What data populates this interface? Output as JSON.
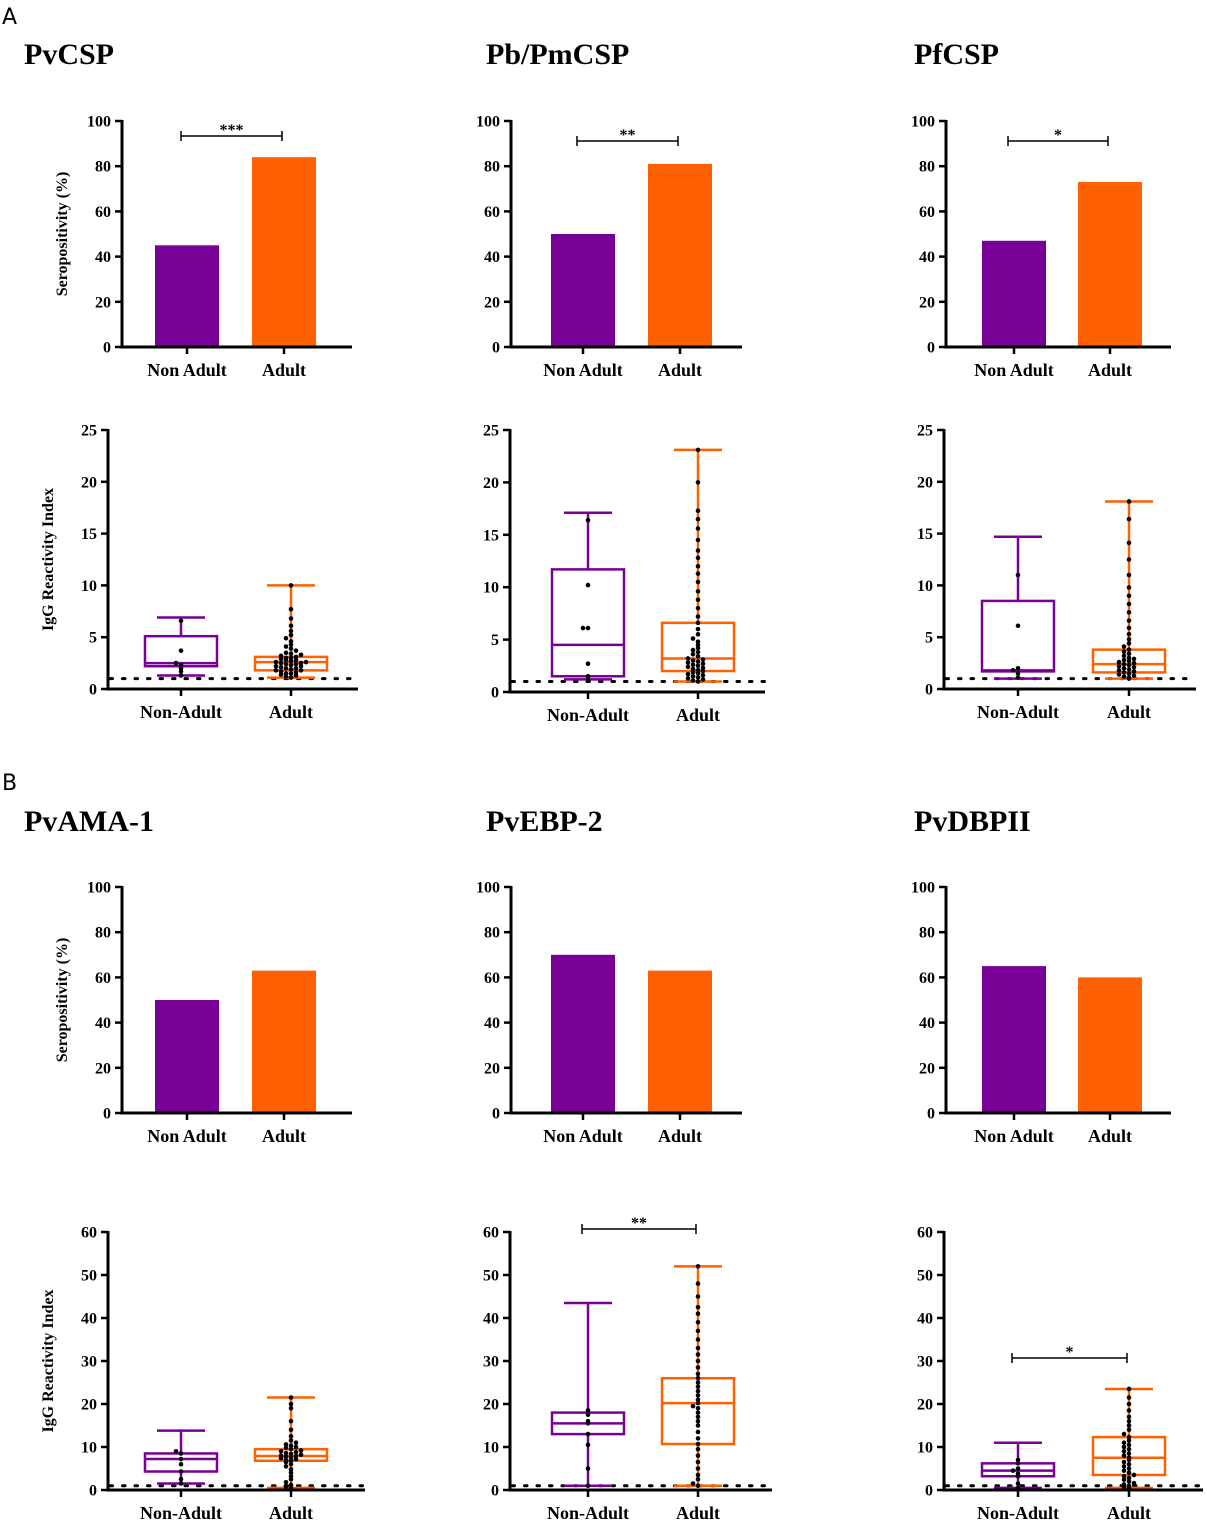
{
  "figure": {
    "sections": [
      {
        "letter": "A"
      },
      {
        "letter": "B"
      }
    ]
  },
  "colors": {
    "non_adult": "#780094",
    "adult": "#ff6100",
    "axis": "#000000",
    "dots": "#000000"
  },
  "chart_data": [
    {
      "id": "pvcsp-sero",
      "type": "bar",
      "title": "PvCSP",
      "ylabel": "Seropositivity (%)",
      "categories": [
        "Non Adult",
        "Adult"
      ],
      "values": [
        45,
        84
      ],
      "ylim": [
        0,
        100
      ],
      "yticks": [
        0,
        20,
        40,
        60,
        80,
        100
      ],
      "significance": "***"
    },
    {
      "id": "pbpmcsp-sero",
      "type": "bar",
      "title": "Pb/PmCSP",
      "ylabel": "",
      "categories": [
        "Non Adult",
        "Adult"
      ],
      "values": [
        50,
        81
      ],
      "ylim": [
        0,
        100
      ],
      "yticks": [
        0,
        20,
        40,
        60,
        80,
        100
      ],
      "significance": "**"
    },
    {
      "id": "pfcsp-sero",
      "type": "bar",
      "title": "PfCSP",
      "ylabel": "",
      "categories": [
        "Non Adult",
        "Adult"
      ],
      "values": [
        47,
        73
      ],
      "ylim": [
        0,
        100
      ],
      "yticks": [
        0,
        20,
        40,
        60,
        80,
        100
      ],
      "significance": "*"
    },
    {
      "id": "pvcsp-igg",
      "type": "boxplot",
      "ylabel": "IgG Reactivity Index",
      "categories": [
        "Non-Adult",
        "Adult"
      ],
      "ylim": [
        0,
        25
      ],
      "yticks": [
        0,
        5,
        10,
        15,
        20,
        25
      ],
      "cutoff": 1,
      "boxes": [
        {
          "min": 1.3,
          "q1": 2.2,
          "median": 2.5,
          "q3": 5.1,
          "max": 6.9,
          "points": [
            1.3,
            1.7,
            2.0,
            2.3,
            2.5,
            3.7,
            6.6
          ]
        },
        {
          "min": 1.1,
          "q1": 1.8,
          "median": 2.6,
          "q3": 3.1,
          "max": 10.0,
          "points": [
            1.1,
            1.2,
            1.3,
            1.4,
            1.5,
            1.5,
            1.6,
            1.7,
            1.8,
            1.8,
            1.9,
            2.0,
            2.0,
            2.1,
            2.2,
            2.2,
            2.3,
            2.4,
            2.4,
            2.5,
            2.5,
            2.6,
            2.6,
            2.7,
            2.8,
            2.8,
            2.9,
            3.0,
            3.0,
            3.1,
            3.2,
            3.3,
            3.4,
            3.5,
            3.7,
            3.9,
            4.1,
            4.3,
            4.6,
            4.9,
            5.2,
            5.6,
            6.1,
            6.8,
            7.7,
            10.0
          ]
        }
      ]
    },
    {
      "id": "pbpmcsp-igg",
      "type": "boxplot",
      "ylabel": "",
      "categories": [
        "Non-Adult",
        "Adult"
      ],
      "ylim": [
        0,
        25
      ],
      "yticks": [
        0,
        5,
        10,
        15,
        20,
        25
      ],
      "cutoff": 1,
      "boxes": [
        {
          "min": 1.2,
          "q1": 1.5,
          "median": 4.5,
          "q3": 11.7,
          "max": 17.1,
          "points": [
            1.2,
            1.5,
            2.7,
            6.1,
            6.1,
            10.2,
            16.4
          ]
        },
        {
          "min": 1.0,
          "q1": 2.0,
          "median": 3.2,
          "q3": 6.6,
          "max": 23.1,
          "points": [
            1.0,
            1.1,
            1.2,
            1.3,
            1.4,
            1.5,
            1.6,
            1.7,
            1.8,
            1.9,
            2.0,
            2.1,
            2.2,
            2.3,
            2.4,
            2.5,
            2.6,
            2.7,
            2.8,
            2.9,
            3.0,
            3.1,
            3.2,
            3.4,
            3.6,
            3.8,
            4.0,
            4.2,
            4.5,
            4.8,
            5.1,
            5.5,
            6.0,
            6.6,
            7.2,
            8.0,
            8.8,
            9.6,
            10.5,
            11.3,
            12.0,
            12.8,
            13.5,
            14.5,
            15.6,
            16.5,
            17.3,
            20.0,
            23.1
          ]
        }
      ]
    },
    {
      "id": "pfcsp-igg",
      "type": "boxplot",
      "ylabel": "",
      "categories": [
        "Non-Adult",
        "Adult"
      ],
      "ylim": [
        0,
        25
      ],
      "yticks": [
        0,
        5,
        10,
        15,
        20,
        25
      ],
      "cutoff": 1,
      "boxes": [
        {
          "min": 1.0,
          "q1": 1.7,
          "median": 1.8,
          "q3": 8.5,
          "max": 14.7,
          "points": [
            1.1,
            1.5,
            1.8,
            2.0,
            6.1,
            11.0
          ]
        },
        {
          "min": 1.0,
          "q1": 1.6,
          "median": 2.4,
          "q3": 3.8,
          "max": 18.1,
          "points": [
            1.0,
            1.1,
            1.2,
            1.3,
            1.4,
            1.5,
            1.6,
            1.7,
            1.8,
            1.9,
            2.0,
            2.1,
            2.2,
            2.3,
            2.4,
            2.5,
            2.6,
            2.7,
            2.8,
            2.9,
            3.0,
            3.2,
            3.4,
            3.6,
            3.8,
            4.1,
            4.4,
            4.8,
            5.3,
            5.9,
            6.6,
            7.4,
            8.2,
            9.0,
            9.8,
            11.0,
            12.5,
            14.1,
            16.4,
            18.1
          ]
        }
      ]
    },
    {
      "id": "pvama1-sero",
      "type": "bar",
      "title": "PvAMA-1",
      "ylabel": "Seropositivity (%)",
      "categories": [
        "Non Adult",
        "Adult"
      ],
      "values": [
        50,
        63
      ],
      "ylim": [
        0,
        100
      ],
      "yticks": [
        0,
        20,
        40,
        60,
        80,
        100
      ],
      "significance": ""
    },
    {
      "id": "pvebp2-sero",
      "type": "bar",
      "title": "PvEBP-2",
      "ylabel": "",
      "categories": [
        "Non Adult",
        "Adult"
      ],
      "values": [
        70,
        63
      ],
      "ylim": [
        0,
        100
      ],
      "yticks": [
        0,
        20,
        40,
        60,
        80,
        100
      ],
      "significance": ""
    },
    {
      "id": "pvdbpii-sero",
      "type": "bar",
      "title": "PvDBPII",
      "ylabel": "",
      "categories": [
        "Non Adult",
        "Adult"
      ],
      "values": [
        65,
        60
      ],
      "ylim": [
        0,
        100
      ],
      "yticks": [
        0,
        20,
        40,
        60,
        80,
        100
      ],
      "significance": ""
    },
    {
      "id": "pvama1-igg",
      "type": "boxplot",
      "ylabel": "IgG Reactivity Index",
      "categories": [
        "Non-Adult",
        "Adult"
      ],
      "ylim": [
        0,
        60
      ],
      "yticks": [
        0,
        10,
        20,
        30,
        40,
        50,
        60
      ],
      "cutoff": 1,
      "significance": "",
      "boxes": [
        {
          "min": 1.5,
          "q1": 4.3,
          "median": 7.2,
          "q3": 8.5,
          "max": 13.8,
          "points": [
            1.5,
            2.5,
            4.3,
            6.0,
            7.2,
            8.5,
            9.0
          ]
        },
        {
          "min": 0.5,
          "q1": 6.8,
          "median": 7.9,
          "q3": 9.5,
          "max": 21.5,
          "points": [
            0.5,
            0.8,
            1.2,
            1.8,
            2.5,
            3.2,
            4.0,
            4.8,
            5.5,
            6.0,
            6.5,
            6.8,
            7.0,
            7.2,
            7.4,
            7.6,
            7.8,
            7.9,
            8.0,
            8.2,
            8.4,
            8.6,
            8.8,
            9.0,
            9.2,
            9.5,
            9.8,
            10.0,
            10.3,
            10.6,
            11.0,
            11.5,
            12.5,
            14.0,
            16.0,
            19.0,
            20.0,
            21.5
          ]
        }
      ]
    },
    {
      "id": "pvebp2-igg",
      "type": "boxplot",
      "ylabel": "",
      "categories": [
        "Non-Adult",
        "Adult"
      ],
      "ylim": [
        0,
        60
      ],
      "yticks": [
        0,
        10,
        20,
        30,
        40,
        50,
        60
      ],
      "cutoff": 1,
      "significance": "**",
      "boxes": [
        {
          "min": 1.0,
          "q1": 13.0,
          "median": 15.5,
          "q3": 18.0,
          "max": 43.5,
          "points": [
            1.0,
            5.0,
            10.5,
            13.0,
            15.5,
            16.0,
            17.5,
            18.5
          ]
        },
        {
          "min": 1.0,
          "q1": 10.7,
          "median": 20.2,
          "q3": 26.0,
          "max": 52.0,
          "points": [
            1.0,
            1.5,
            2.5,
            3.5,
            5.0,
            6.5,
            8.0,
            9.5,
            10.7,
            12.0,
            13.5,
            15.0,
            16.0,
            17.0,
            18.0,
            19.0,
            19.5,
            20.2,
            21.0,
            22.0,
            23.0,
            24.0,
            25.0,
            26.0,
            27.0,
            28.5,
            30.0,
            31.5,
            33.0,
            35.0,
            37.0,
            39.0,
            41.0,
            42.5,
            45.0,
            48.0,
            52.0
          ]
        }
      ]
    },
    {
      "id": "pvdbpii-igg",
      "type": "boxplot",
      "ylabel": "",
      "categories": [
        "Non-Adult",
        "Adult"
      ],
      "ylim": [
        0,
        60
      ],
      "yticks": [
        0,
        10,
        20,
        30,
        40,
        50,
        60
      ],
      "cutoff": 1,
      "significance": "*",
      "boxes": [
        {
          "min": 0.5,
          "q1": 3.2,
          "median": 4.5,
          "q3": 6.2,
          "max": 11.0,
          "points": [
            0.5,
            1.5,
            3.2,
            3.8,
            4.5,
            5.0,
            6.2,
            7.0
          ]
        },
        {
          "min": 0.5,
          "q1": 3.5,
          "median": 7.5,
          "q3": 12.3,
          "max": 23.5,
          "points": [
            0.5,
            0.8,
            1.0,
            1.3,
            1.6,
            2.0,
            2.4,
            2.8,
            3.2,
            3.5,
            4.0,
            4.5,
            5.0,
            5.5,
            6.0,
            6.5,
            7.0,
            7.5,
            8.0,
            8.5,
            9.0,
            9.5,
            10.0,
            10.5,
            11.0,
            11.5,
            12.3,
            13.0,
            14.0,
            15.0,
            16.0,
            17.0,
            18.5,
            20.0,
            21.5,
            23.5
          ]
        }
      ]
    }
  ]
}
